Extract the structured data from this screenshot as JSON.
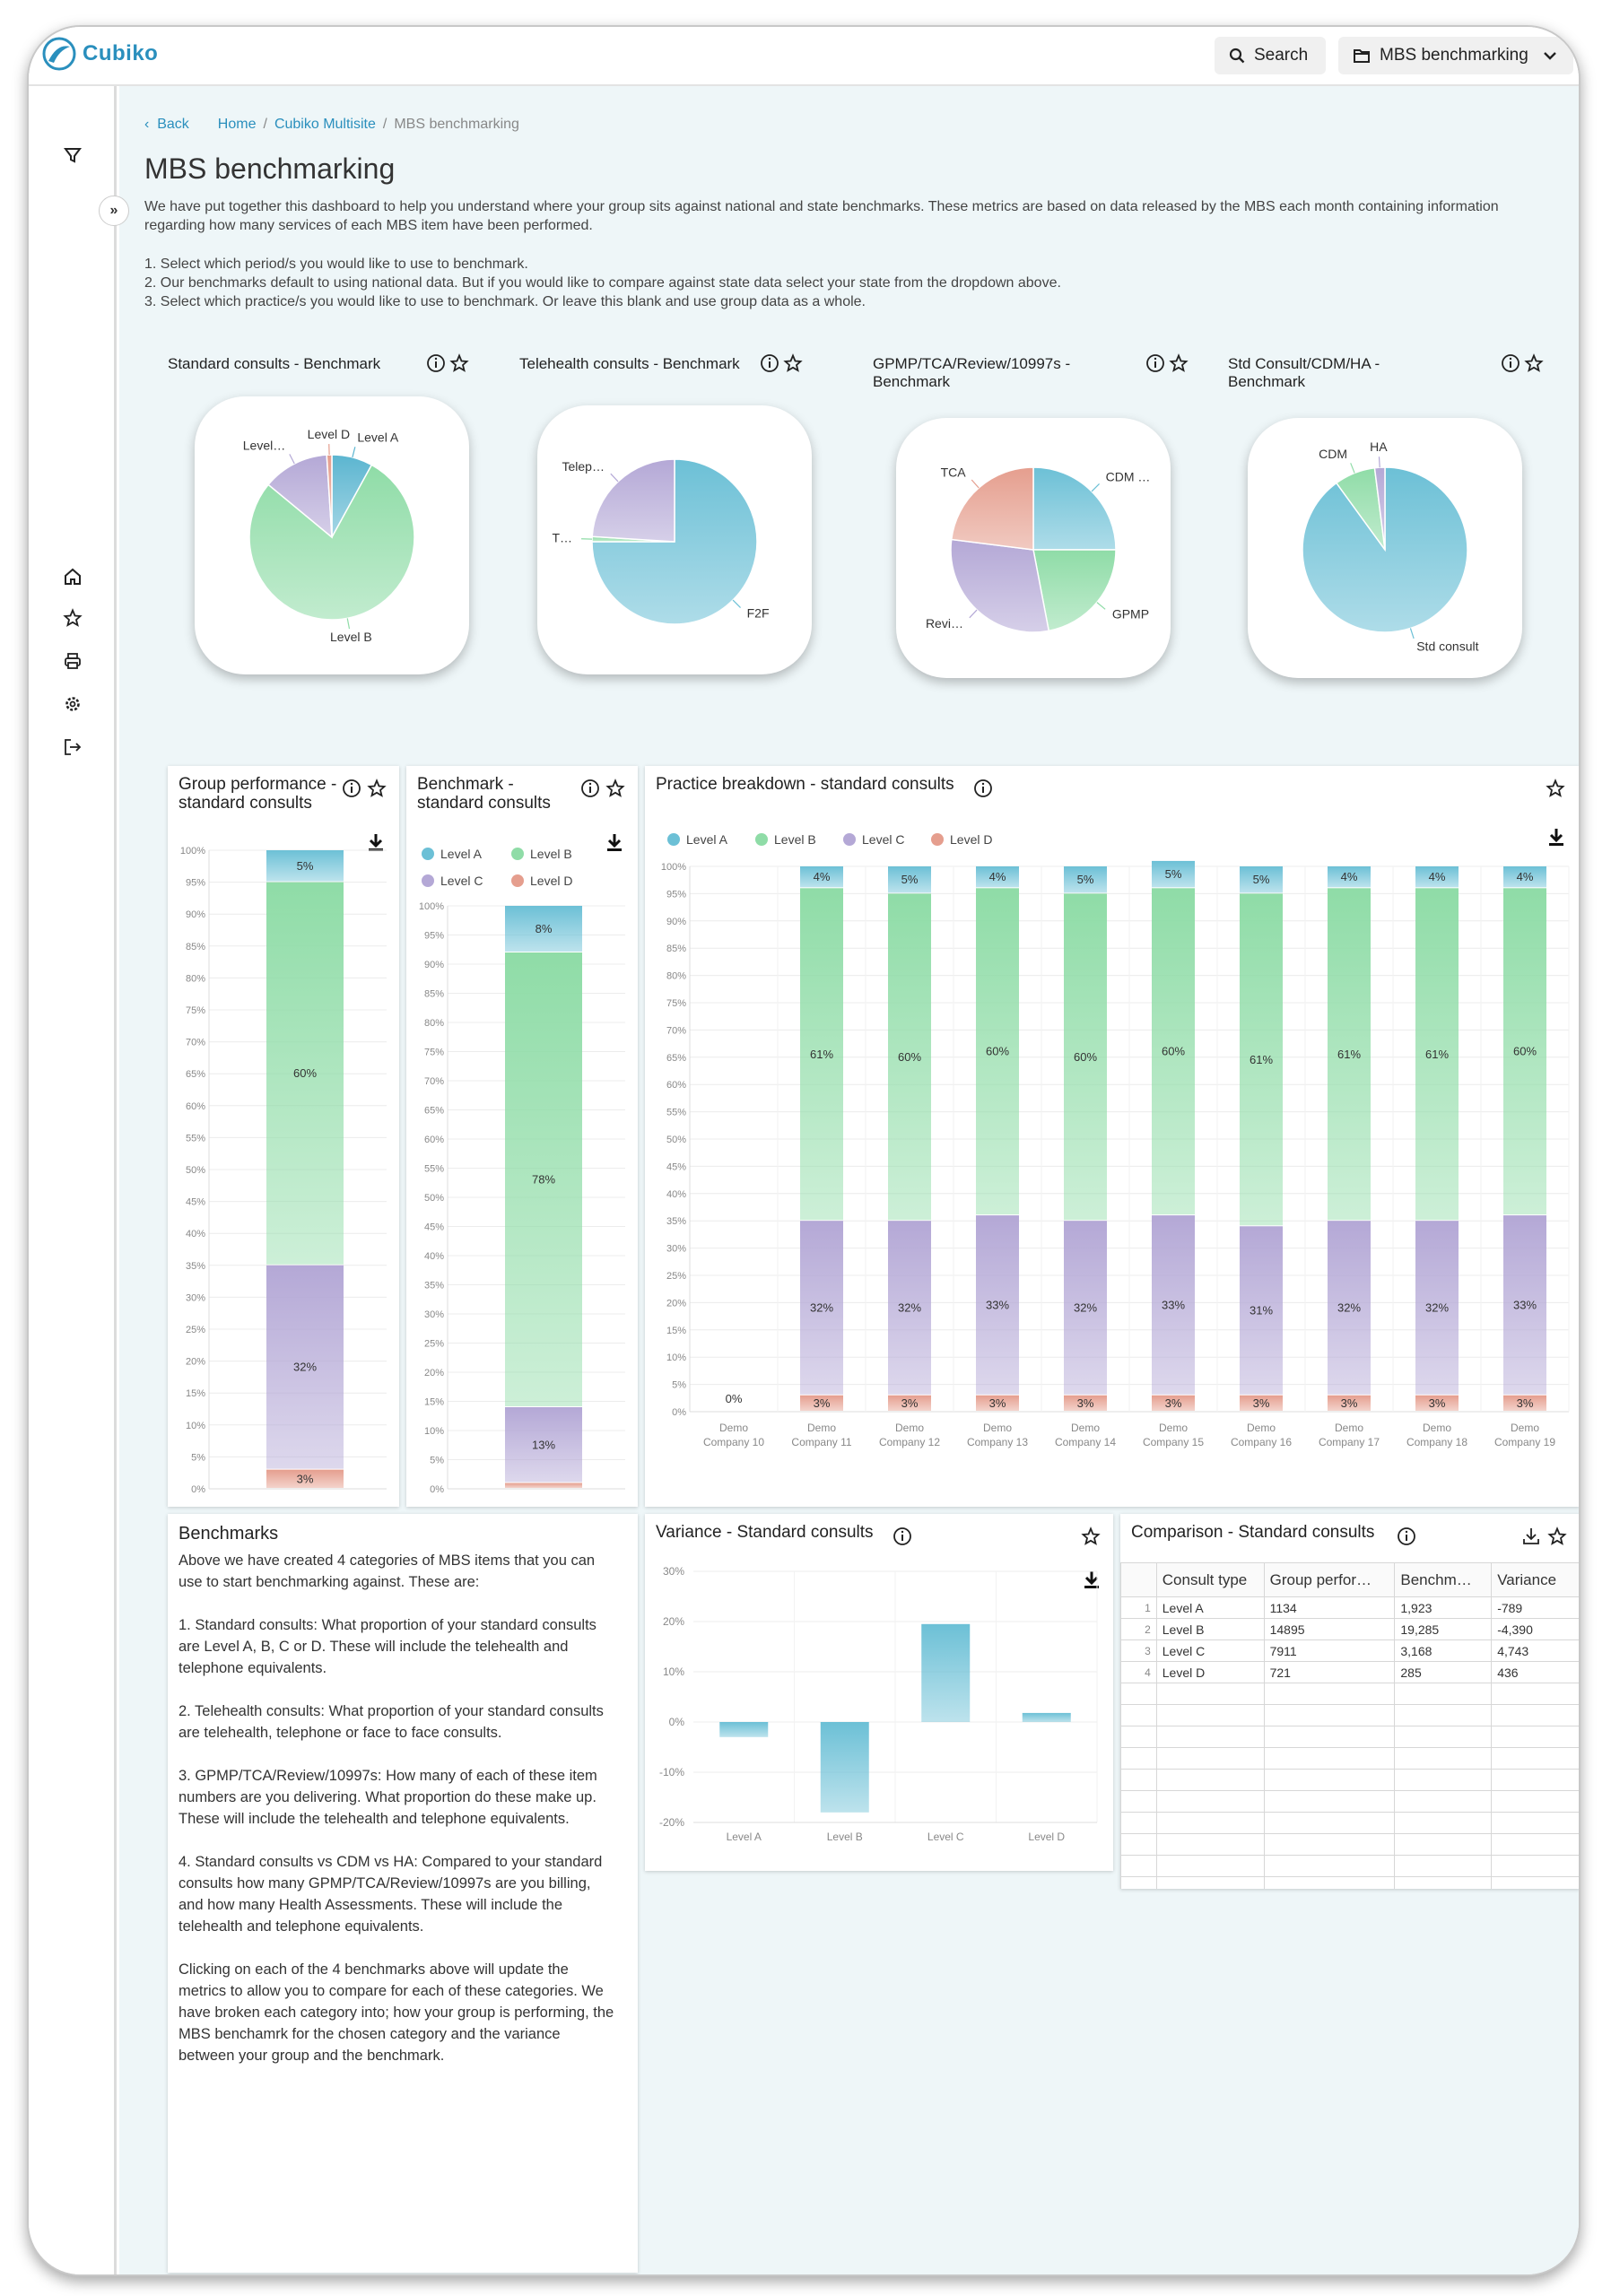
{
  "app": {
    "name": "Cubiko"
  },
  "topbar": {
    "search_label": "Search",
    "dashboard_label": "MBS benchmarking"
  },
  "breadcrumb": {
    "back": "Back",
    "items": [
      "Home",
      "Cubiko Multisite",
      "MBS benchmarking"
    ]
  },
  "page": {
    "title": "MBS benchmarking",
    "intro": "We have put together this dashboard to help you understand where your group sits against national and state benchmarks. These metrics are based on data released by the MBS each month containing information regarding how many services of each MBS item have been performed.",
    "steps": [
      "1. Select which period/s you would like to use to benchmark.",
      "2. Our benchmarks default to using national data. But if you would like to compare against state data select your state from the dropdown above.",
      "3. Select which practice/s you would like to use to benchmark. Or leave this blank and use group data as a whole."
    ]
  },
  "pies": [
    {
      "title": "Standard consults - Benchmark",
      "slices": [
        {
          "label": "Level A",
          "value": 8,
          "color": "#5bb5d0"
        },
        {
          "label": "Level B",
          "value": 78,
          "color": "#8fdca7"
        },
        {
          "label": "Level…",
          "value": 13,
          "color": "#b4a8d6"
        },
        {
          "label": "Level D",
          "value": 1,
          "color": "#e59e8e"
        }
      ]
    },
    {
      "title": "Telehealth consults - Benchmark",
      "slices": [
        {
          "label": "F2F",
          "value": 75,
          "color": "#6cc0d6"
        },
        {
          "label": "T…",
          "value": 1,
          "color": "#8fdca7"
        },
        {
          "label": "Telep…",
          "value": 24,
          "color": "#b4a8d6"
        }
      ]
    },
    {
      "title": "GPMP/TCA/Review/10997s - Benchmark",
      "slices": [
        {
          "label": "CDM …",
          "value": 25,
          "color": "#6cc0d6"
        },
        {
          "label": "GPMP",
          "value": 22,
          "color": "#8fdca7"
        },
        {
          "label": "Revi…",
          "value": 30,
          "color": "#b4a8d6"
        },
        {
          "label": "TCA",
          "value": 23,
          "color": "#e59e8e"
        }
      ]
    },
    {
      "title": "Std Consult/CDM/HA - Benchmark",
      "slices": [
        {
          "label": "Std consult",
          "value": 90,
          "color": "#6cc0d6"
        },
        {
          "label": "CDM",
          "value": 8,
          "color": "#8fdca7"
        },
        {
          "label": "HA",
          "value": 2,
          "color": "#b4a8d6"
        }
      ]
    }
  ],
  "group_perf": {
    "title": "Group performance - standard consults",
    "segments": [
      {
        "label": "Level D",
        "value": 3,
        "color": "#e59e8e"
      },
      {
        "label": "Level C",
        "value": 32,
        "color": "#b4a8d6"
      },
      {
        "label": "Level B",
        "value": 60,
        "color": "#8fdca7"
      },
      {
        "label": "Level A",
        "value": 5,
        "color": "#6cc0d6"
      }
    ],
    "labels": [
      "3%",
      "32%",
      "60%",
      "5%"
    ]
  },
  "benchmark": {
    "title": "Benchmark - standard consults",
    "legend": [
      "Level A",
      "Level B",
      "Level C",
      "Level D"
    ],
    "segments": [
      {
        "label": "Level D",
        "value": 1,
        "color": "#e59e8e"
      },
      {
        "label": "Level C",
        "value": 13,
        "color": "#b4a8d6"
      },
      {
        "label": "Level B",
        "value": 78,
        "color": "#8fdca7"
      },
      {
        "label": "Level A",
        "value": 8,
        "color": "#6cc0d6"
      }
    ],
    "labels": [
      "",
      "13%",
      "78%",
      "8%"
    ]
  },
  "breakdown": {
    "title": "Practice breakdown - standard consults",
    "legend": [
      "Level A",
      "Level B",
      "Level C",
      "Level D"
    ],
    "colors": [
      "#6cc0d6",
      "#8fdca7",
      "#b4a8d6",
      "#e59e8e"
    ],
    "companies": [
      {
        "line1": "Demo",
        "line2": "Company 10",
        "empty_label": "0%",
        "a": 0,
        "b": 0,
        "c": 0,
        "d": 0
      },
      {
        "line1": "Demo",
        "line2": "Company 11",
        "a": 4,
        "b": 61,
        "c": 32,
        "d": 3
      },
      {
        "line1": "Demo",
        "line2": "Company 12",
        "a": 5,
        "b": 60,
        "c": 32,
        "d": 3
      },
      {
        "line1": "Demo",
        "line2": "Company 13",
        "a": 4,
        "b": 60,
        "c": 33,
        "d": 3
      },
      {
        "line1": "Demo",
        "line2": "Company 14",
        "a": 5,
        "b": 60,
        "c": 32,
        "d": 3
      },
      {
        "line1": "Demo",
        "line2": "Company 15",
        "a": 5,
        "b": 60,
        "c": 33,
        "d": 3
      },
      {
        "line1": "Demo",
        "line2": "Company 16",
        "a": 5,
        "b": 61,
        "c": 31,
        "d": 3
      },
      {
        "line1": "Demo",
        "line2": "Company 17",
        "a": 4,
        "b": 61,
        "c": 32,
        "d": 3
      },
      {
        "line1": "Demo",
        "line2": "Company 18",
        "a": 4,
        "b": 61,
        "c": 32,
        "d": 3
      },
      {
        "line1": "Demo",
        "line2": "Company 19",
        "a": 4,
        "b": 60,
        "c": 33,
        "d": 3
      }
    ]
  },
  "benchmarks_text": {
    "title": "Benchmarks",
    "paragraphs": [
      "Above we have created 4 categories of MBS items that you can use to start benchmarking against. These are:",
      "1. Standard consults: What proportion of your standard consults are Level A, B, C or D. These will include the telehealth and telephone equivalents.",
      "2. Telehealth consults: What proportion of your standard consults are telehealth, telephone or face to face consults.",
      "3. GPMP/TCA/Review/10997s: How many of each of these item numbers are you delivering. What proportion do these make up. These will include the telehealth and telephone equivalents.",
      "4. Standard consults vs CDM vs HA: Compared to your standard consults how many GPMP/TCA/Review/10997s are you billing, and how many Health Assessments. These will include the telehealth and telephone equivalents.",
      "Clicking on each of the 4 benchmarks above will update the metrics to allow you to compare for each of these categories. We have broken each category into; how your group is performing, the MBS benchamrk for the chosen category and the variance between your group and the benchmark."
    ]
  },
  "variance": {
    "title": "Variance - Standard consults",
    "categories": [
      "Level A",
      "Level B",
      "Level C",
      "Level D"
    ],
    "values": [
      -3,
      -18,
      19.5,
      1.8
    ],
    "ylim": [
      -20,
      30
    ],
    "ticks": [
      "30%",
      "20%",
      "10%",
      "0%",
      "-10%",
      "-20%"
    ]
  },
  "comparison": {
    "title": "Comparison - Standard consults",
    "headers": [
      "Consult type",
      "Group perfor…",
      "Benchm…",
      "Variance"
    ],
    "rows": [
      [
        "1",
        "Level A",
        "1134",
        "1,923",
        "-789"
      ],
      [
        "2",
        "Level B",
        "14895",
        "19,285",
        "-4,390"
      ],
      [
        "3",
        "Level C",
        "7911",
        "3,168",
        "4,743"
      ],
      [
        "4",
        "Level D",
        "721",
        "285",
        "436"
      ]
    ]
  },
  "chart_data": [
    {
      "type": "pie",
      "title": "Standard consults - Benchmark",
      "labels": [
        "Level A",
        "Level B",
        "Level C",
        "Level D"
      ],
      "values": [
        8,
        78,
        13,
        1
      ]
    },
    {
      "type": "pie",
      "title": "Telehealth consults - Benchmark",
      "labels": [
        "F2F",
        "Telehealth",
        "Telephone"
      ],
      "values": [
        75,
        1,
        24
      ]
    },
    {
      "type": "pie",
      "title": "GPMP/TCA/Review/10997s - Benchmark",
      "labels": [
        "CDM",
        "GPMP",
        "Review",
        "TCA"
      ],
      "values": [
        25,
        22,
        30,
        23
      ]
    },
    {
      "type": "pie",
      "title": "Std Consult/CDM/HA - Benchmark",
      "labels": [
        "Std consult",
        "CDM",
        "HA"
      ],
      "values": [
        90,
        8,
        2
      ]
    },
    {
      "type": "bar",
      "title": "Group performance - standard consults",
      "series": [
        {
          "name": "Level A",
          "values": [
            5
          ]
        },
        {
          "name": "Level B",
          "values": [
            60
          ]
        },
        {
          "name": "Level C",
          "values": [
            32
          ]
        },
        {
          "name": "Level D",
          "values": [
            3
          ]
        }
      ],
      "ylim": [
        0,
        100
      ]
    },
    {
      "type": "bar",
      "title": "Benchmark - standard consults",
      "series": [
        {
          "name": "Level A",
          "values": [
            8
          ]
        },
        {
          "name": "Level B",
          "values": [
            78
          ]
        },
        {
          "name": "Level C",
          "values": [
            13
          ]
        },
        {
          "name": "Level D",
          "values": [
            1
          ]
        }
      ],
      "ylim": [
        0,
        100
      ]
    },
    {
      "type": "bar",
      "title": "Practice breakdown - standard consults",
      "categories": [
        "Demo Company 10",
        "Demo Company 11",
        "Demo Company 12",
        "Demo Company 13",
        "Demo Company 14",
        "Demo Company 15",
        "Demo Company 16",
        "Demo Company 17",
        "Demo Company 18",
        "Demo Company 19"
      ],
      "series": [
        {
          "name": "Level A",
          "values": [
            0,
            4,
            5,
            4,
            5,
            5,
            5,
            4,
            4,
            4
          ]
        },
        {
          "name": "Level B",
          "values": [
            0,
            61,
            60,
            60,
            60,
            60,
            61,
            61,
            61,
            60
          ]
        },
        {
          "name": "Level C",
          "values": [
            0,
            32,
            32,
            33,
            32,
            33,
            31,
            32,
            32,
            33
          ]
        },
        {
          "name": "Level D",
          "values": [
            0,
            3,
            3,
            3,
            3,
            3,
            3,
            3,
            3,
            3
          ]
        }
      ],
      "ylim": [
        0,
        100
      ]
    },
    {
      "type": "bar",
      "title": "Variance - Standard consults",
      "categories": [
        "Level A",
        "Level B",
        "Level C",
        "Level D"
      ],
      "values": [
        -3,
        -18,
        19.5,
        1.8
      ],
      "ylim": [
        -20,
        30
      ]
    }
  ]
}
